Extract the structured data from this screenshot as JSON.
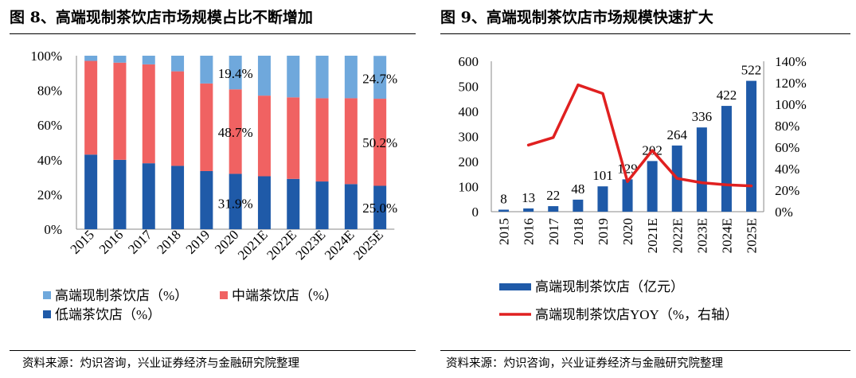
{
  "left": {
    "title": "图 8、高端现制茶饮店市场规模占比不断增加",
    "source": "资料来源：灼识咨询，兴业证券经济与金融研究院整理",
    "chart_data": {
      "type": "bar",
      "stacked": true,
      "categories": [
        "2015",
        "2016",
        "2017",
        "2018",
        "2019",
        "2020",
        "2021E",
        "2022E",
        "2023E",
        "2024E",
        "2025E"
      ],
      "series": [
        {
          "name": "低端茶饮店（%）",
          "color": "#1F5AA8",
          "values": [
            43,
            40,
            38,
            36.5,
            33.5,
            31.9,
            30.5,
            29,
            27.5,
            26,
            25.0
          ]
        },
        {
          "name": "中端茶饮店（%）",
          "color": "#F06262",
          "values": [
            54,
            56,
            57,
            54.5,
            50.5,
            48.7,
            46.5,
            47,
            48,
            49.5,
            50.2
          ]
        },
        {
          "name": "高端现制茶饮店（%）",
          "color": "#6FA8DC",
          "values": [
            3,
            4,
            5,
            9,
            16,
            19.4,
            23,
            24,
            24.5,
            24.5,
            24.7
          ]
        }
      ],
      "ylim": [
        0,
        100
      ],
      "yticks": [
        "0%",
        "20%",
        "40%",
        "60%",
        "80%",
        "100%"
      ],
      "labels": [
        {
          "text": "19.4%",
          "cat": 5,
          "y": 90
        },
        {
          "text": "48.7%",
          "cat": 5,
          "y": 56
        },
        {
          "text": "31.9%",
          "cat": 5,
          "y": 15
        },
        {
          "text": "24.7%",
          "cat": 10,
          "y": 87
        },
        {
          "text": "50.2%",
          "cat": 10,
          "y": 50
        },
        {
          "text": "25.0%",
          "cat": 10,
          "y": 12.5
        }
      ],
      "legend": [
        "高端现制茶饮店（%）",
        "中端茶饮店（%）",
        "低端茶饮店（%）"
      ]
    }
  },
  "right": {
    "title": "图 9、高端现制茶饮店市场规模快速扩大",
    "source": "资料来源：灼识咨询，兴业证券经济与金融研究院整理",
    "chart_data": {
      "type": "bar+line",
      "categories": [
        "2015",
        "2016",
        "2017",
        "2018",
        "2019",
        "2020",
        "2021E",
        "2022E",
        "2023E",
        "2024E",
        "2025E"
      ],
      "bar_series": {
        "name": "高端现制茶饮店（亿元）",
        "color": "#1F5AA8",
        "values": [
          8,
          13,
          22,
          48,
          101,
          129,
          202,
          264,
          336,
          422,
          522
        ]
      },
      "line_series": {
        "name": "高端现制茶饮店YOY（%，右轴）",
        "color": "#E02020",
        "values": [
          null,
          62,
          69,
          118,
          110,
          28,
          57,
          31,
          27,
          25,
          24
        ]
      },
      "ylim_left": [
        0,
        600
      ],
      "yticks_left": [
        "0",
        "100",
        "200",
        "300",
        "400",
        "500",
        "600"
      ],
      "ylim_right": [
        0,
        140
      ],
      "yticks_right": [
        "0%",
        "20%",
        "40%",
        "60%",
        "80%",
        "100%",
        "120%",
        "140%"
      ],
      "legend": [
        "高端现制茶饮店（亿元）",
        "高端现制茶饮店YOY（%，右轴）"
      ]
    }
  }
}
